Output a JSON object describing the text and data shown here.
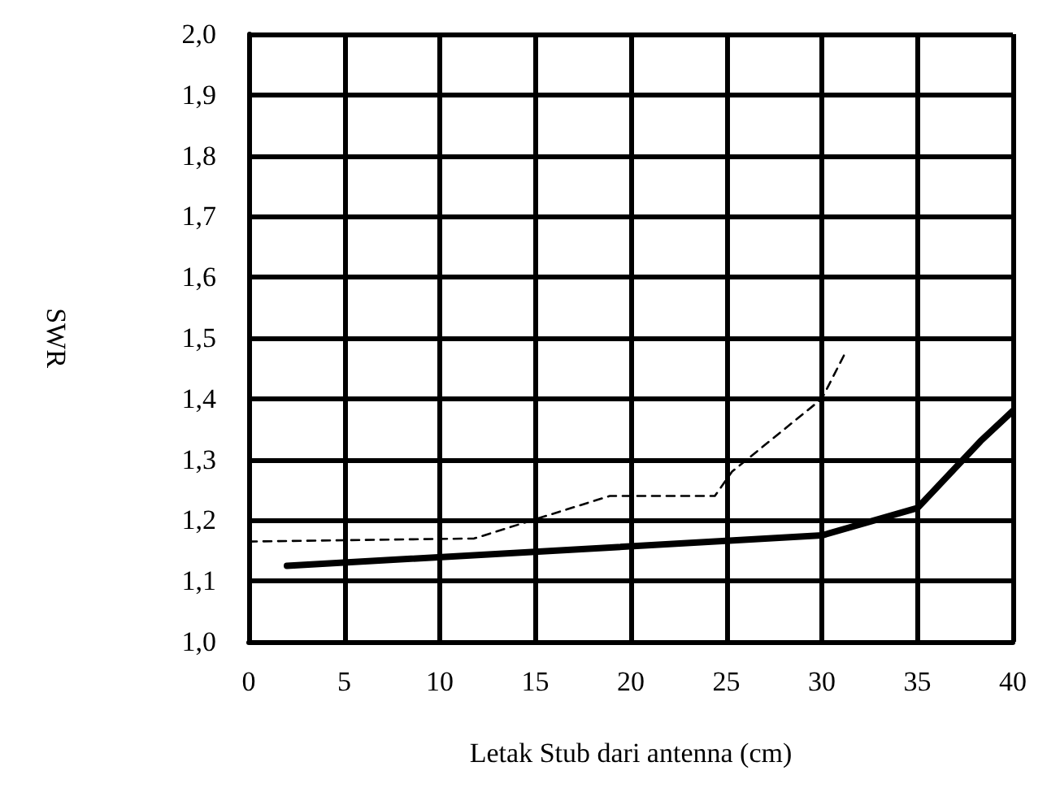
{
  "chart_data": {
    "type": "line",
    "xlabel": "Letak Stub dari antenna (cm)",
    "ylabel": "SWR",
    "xlim": [
      0,
      40
    ],
    "xticks": [
      0,
      5,
      10,
      15,
      20,
      25,
      30,
      35,
      40
    ],
    "ylim": [
      1.0,
      2.0
    ],
    "yticks": [
      {
        "value": 1.0,
        "label": "1,0"
      },
      {
        "value": 1.1,
        "label": "1,1"
      },
      {
        "value": 1.2,
        "label": "1,2"
      },
      {
        "value": 1.3,
        "label": "1,3"
      },
      {
        "value": 1.4,
        "label": "1,4"
      },
      {
        "value": 1.5,
        "label": "1,5"
      },
      {
        "value": 1.6,
        "label": "1,6"
      },
      {
        "value": 1.7,
        "label": "1,7"
      },
      {
        "value": 1.8,
        "label": "1,8"
      },
      {
        "value": 1.9,
        "label": "1,9"
      },
      {
        "value": 2.0,
        "label": "2,0"
      }
    ],
    "grid": true,
    "marker": "none",
    "series": [
      {
        "color": "#000000",
        "line_style": "solid",
        "x": [
          2,
          30,
          35,
          38.3,
          40
        ],
        "values": [
          1.125,
          1.175,
          1.22,
          1.33,
          1.38
        ]
      },
      {
        "color": "#000000",
        "line_style": "dashed",
        "x": [
          0,
          11.8,
          18.9,
          24.4,
          25.3,
          30,
          31.3
        ],
        "values": [
          1.165,
          1.17,
          1.24,
          1.24,
          1.28,
          1.4,
          1.48
        ]
      }
    ]
  }
}
